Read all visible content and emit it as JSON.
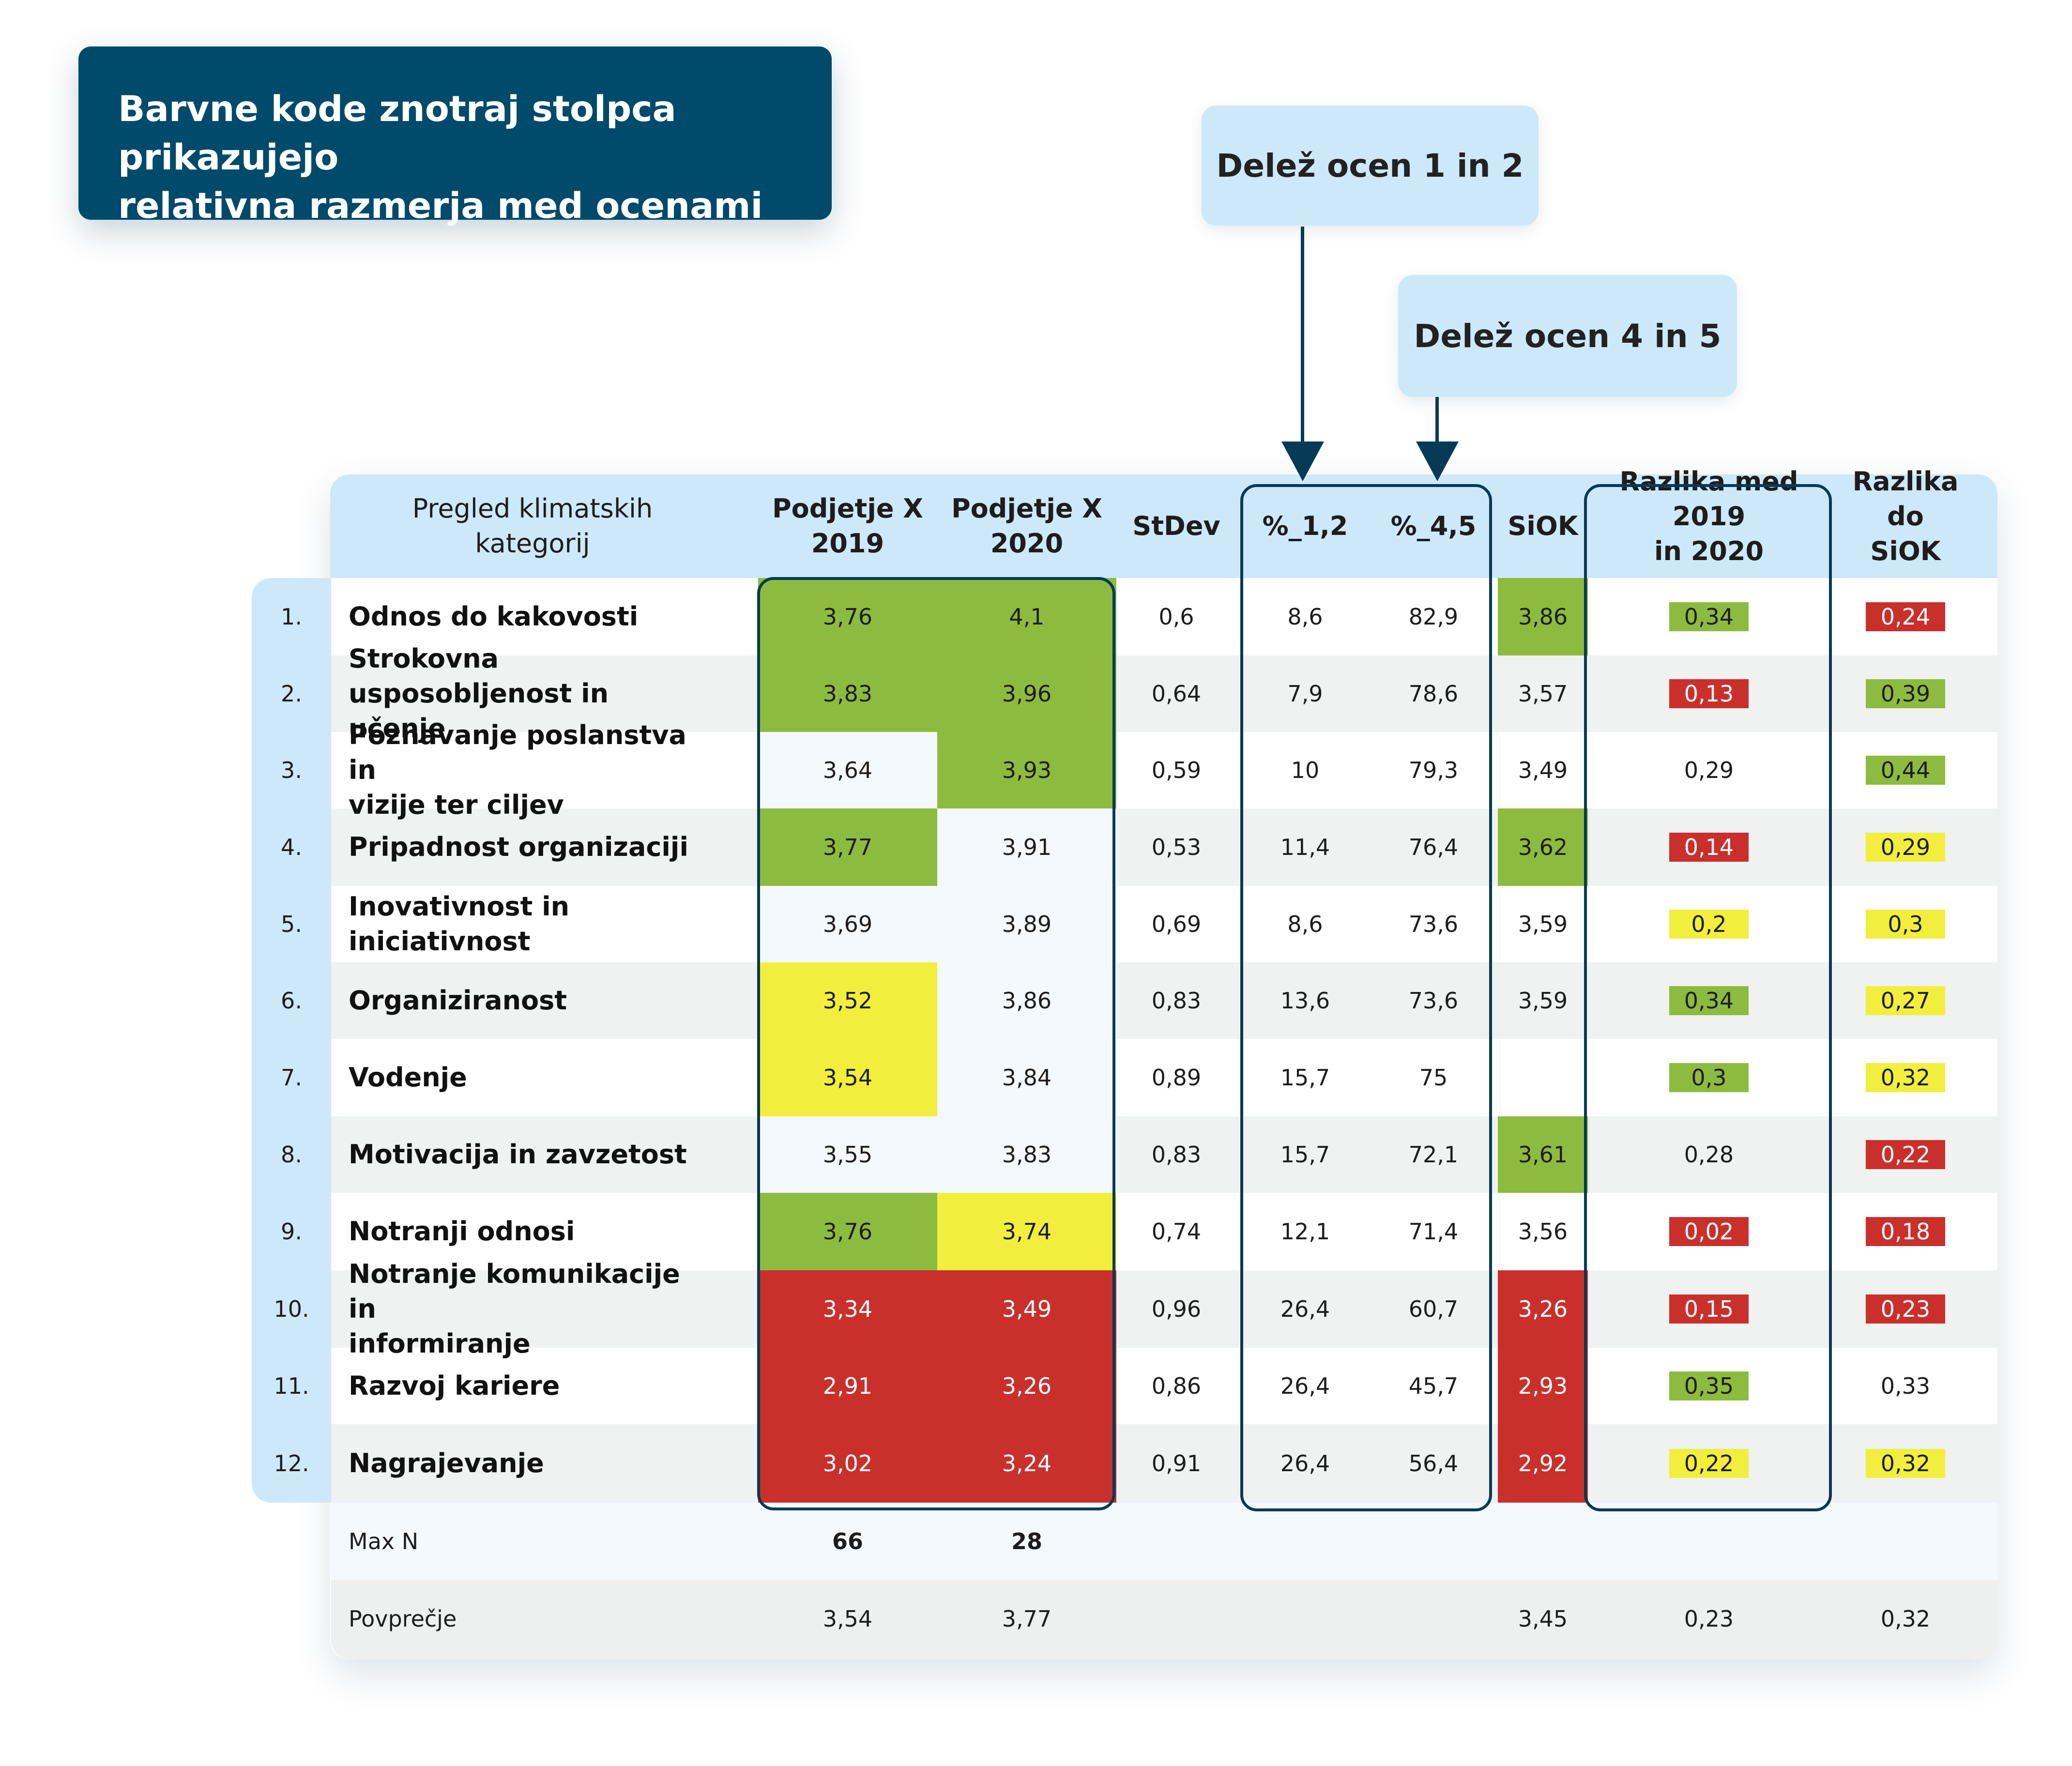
{
  "banner": {
    "text": "Barvne kode znotraj stolpca prikazujejo\nrelativna razmerja med ocenami"
  },
  "callouts": {
    "share_12": "Delež ocen 1 in 2",
    "share_45": "Delež ocen 4 in 5"
  },
  "colors": {
    "green": "#8dbb3f",
    "yellow": "#f2ee3d",
    "red": "#c9302c",
    "navy": "#004a6b",
    "light_blue": "#cde8f8"
  },
  "headers": {
    "category": "Pregled klimatskih\nkategorij",
    "y2019": "Podjetje X\n2019",
    "y2020": "Podjetje X\n2020",
    "stdev": "StDev",
    "p12": "%_1,2",
    "p45": "%_4,5",
    "siok": "SiOK",
    "diff_years": "Razlika med 2019\nin 2020",
    "diff_siok": "Razlika do\nSiOK"
  },
  "rows": [
    {
      "num": "1.",
      "cat": "Odnos do kakovosti",
      "y2019": "3,76",
      "y2020": "4,1",
      "stdev": "0,6",
      "p12": "8,6",
      "p45": "82,9",
      "siok": "3,86",
      "diff_years": "0,34",
      "diff_siok": "0,24",
      "c2019": "green",
      "c2020": "green",
      "csiok": "green",
      "cdy": "green",
      "cds": "red"
    },
    {
      "num": "2.",
      "cat": "Strokovna usposobljenost in\nučenje",
      "y2019": "3,83",
      "y2020": "3,96",
      "stdev": "0,64",
      "p12": "7,9",
      "p45": "78,6",
      "siok": "3,57",
      "diff_years": "0,13",
      "diff_siok": "0,39",
      "c2019": "green",
      "c2020": "green",
      "csiok": "",
      "cdy": "red",
      "cds": "green"
    },
    {
      "num": "3.",
      "cat": "Poznavanje poslanstva in\nvizije ter ciljev",
      "y2019": "3,64",
      "y2020": "3,93",
      "stdev": "0,59",
      "p12": "10",
      "p45": "79,3",
      "siok": "3,49",
      "diff_years": "0,29",
      "diff_siok": "0,44",
      "c2019": "",
      "c2020": "green",
      "csiok": "",
      "cdy": "",
      "cds": "green"
    },
    {
      "num": "4.",
      "cat": "Pripadnost organizaciji",
      "y2019": "3,77",
      "y2020": "3,91",
      "stdev": "0,53",
      "p12": "11,4",
      "p45": "76,4",
      "siok": "3,62",
      "diff_years": "0,14",
      "diff_siok": "0,29",
      "c2019": "green",
      "c2020": "",
      "csiok": "green",
      "cdy": "red",
      "cds": "yellow"
    },
    {
      "num": "5.",
      "cat": "Inovativnost in\niniciativnost",
      "y2019": "3,69",
      "y2020": "3,89",
      "stdev": "0,69",
      "p12": "8,6",
      "p45": "73,6",
      "siok": "3,59",
      "diff_years": "0,2",
      "diff_siok": "0,3",
      "c2019": "",
      "c2020": "",
      "csiok": "",
      "cdy": "yellow",
      "cds": "yellow"
    },
    {
      "num": "6.",
      "cat": "Organiziranost",
      "y2019": "3,52",
      "y2020": "3,86",
      "stdev": "0,83",
      "p12": "13,6",
      "p45": "73,6",
      "siok": "3,59",
      "diff_years": "0,34",
      "diff_siok": "0,27",
      "c2019": "yellow",
      "c2020": "",
      "csiok": "",
      "cdy": "green",
      "cds": "yellow"
    },
    {
      "num": "7.",
      "cat": "Vodenje",
      "y2019": "3,54",
      "y2020": "3,84",
      "stdev": "0,89",
      "p12": "15,7",
      "p45": "75",
      "siok": "",
      "diff_years": "0,3",
      "diff_siok": "0,32",
      "c2019": "yellow",
      "c2020": "",
      "csiok": "",
      "cdy": "green",
      "cds": "yellow"
    },
    {
      "num": "8.",
      "cat": "Motivacija in zavzetost",
      "y2019": "3,55",
      "y2020": "3,83",
      "stdev": "0,83",
      "p12": "15,7",
      "p45": "72,1",
      "siok": "3,61",
      "diff_years": "0,28",
      "diff_siok": "0,22",
      "c2019": "",
      "c2020": "",
      "csiok": "green",
      "cdy": "",
      "cds": "red"
    },
    {
      "num": "9.",
      "cat": "Notranji odnosi",
      "y2019": "3,76",
      "y2020": "3,74",
      "stdev": "0,74",
      "p12": "12,1",
      "p45": "71,4",
      "siok": "3,56",
      "diff_years": "0,02",
      "diff_siok": "0,18",
      "c2019": "green",
      "c2020": "yellow",
      "csiok": "",
      "cdy": "red",
      "cds": "red"
    },
    {
      "num": "10.",
      "cat": "Notranje komunikacije in\ninformiranje",
      "y2019": "3,34",
      "y2020": "3,49",
      "stdev": "0,96",
      "p12": "26,4",
      "p45": "60,7",
      "siok": "3,26",
      "diff_years": "0,15",
      "diff_siok": "0,23",
      "c2019": "red",
      "c2020": "red",
      "csiok": "red",
      "cdy": "red",
      "cds": "red"
    },
    {
      "num": "11.",
      "cat": "Razvoj kariere",
      "y2019": "2,91",
      "y2020": "3,26",
      "stdev": "0,86",
      "p12": "26,4",
      "p45": "45,7",
      "siok": "2,93",
      "diff_years": "0,35",
      "diff_siok": "0,33",
      "c2019": "red",
      "c2020": "red",
      "csiok": "red",
      "cdy": "green",
      "cds": ""
    },
    {
      "num": "12.",
      "cat": "Nagrajevanje",
      "y2019": "3,02",
      "y2020": "3,24",
      "stdev": "0,91",
      "p12": "26,4",
      "p45": "56,4",
      "siok": "2,92",
      "diff_years": "0,22",
      "diff_siok": "0,32",
      "c2019": "red",
      "c2020": "red",
      "csiok": "red",
      "cdy": "yellow",
      "cds": "yellow"
    }
  ],
  "footer": {
    "maxn_label": "Max N",
    "maxn_2019": "66",
    "maxn_2020": "28",
    "avg_label": "Povprečje",
    "avg_2019": "3,54",
    "avg_2020": "3,77",
    "avg_siok": "3,45",
    "avg_diff_years": "0,23",
    "avg_diff_siok": "0,32"
  }
}
